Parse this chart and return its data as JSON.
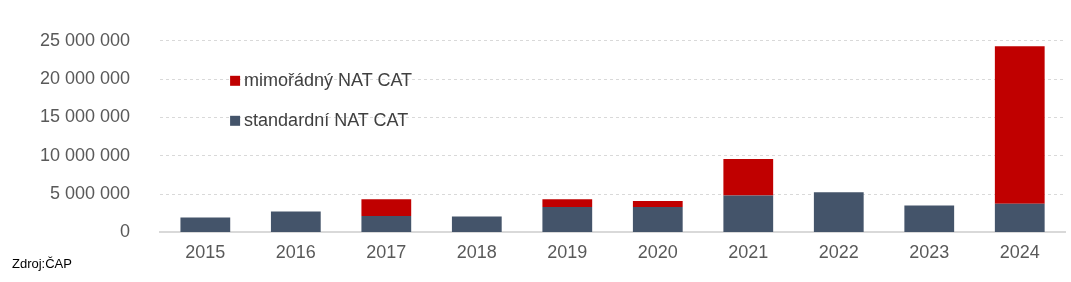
{
  "chart_data": {
    "type": "bar",
    "stacked": true,
    "categories": [
      "2015",
      "2016",
      "2017",
      "2018",
      "2019",
      "2020",
      "2021",
      "2022",
      "2023",
      "2024"
    ],
    "series": [
      {
        "name": "standardní NAT CAT",
        "color": "#44546a",
        "values": [
          1940000,
          2720000,
          2130000,
          2060000,
          3310000,
          3310000,
          4810000,
          5250000,
          3510000,
          3750000
        ]
      },
      {
        "name": "mimořádný NAT CAT",
        "color": "#c00000",
        "values": [
          null,
          null,
          2210000,
          null,
          1030000,
          790000,
          4760000,
          null,
          null,
          20550000
        ]
      }
    ],
    "ylim": [
      0,
      25000000
    ],
    "yticks": [
      {
        "value": 0,
        "label": "0"
      },
      {
        "value": 5000000,
        "label": "5 000 000"
      },
      {
        "value": 10000000,
        "label": "10 000 000"
      },
      {
        "value": 15000000,
        "label": "15 000 000"
      },
      {
        "value": 20000000,
        "label": "20 000 000"
      },
      {
        "value": 25000000,
        "label": "25 000 000"
      }
    ],
    "grid": "y",
    "legend": "top left",
    "annotations": [
      "Zdroj:ČAP"
    ]
  }
}
